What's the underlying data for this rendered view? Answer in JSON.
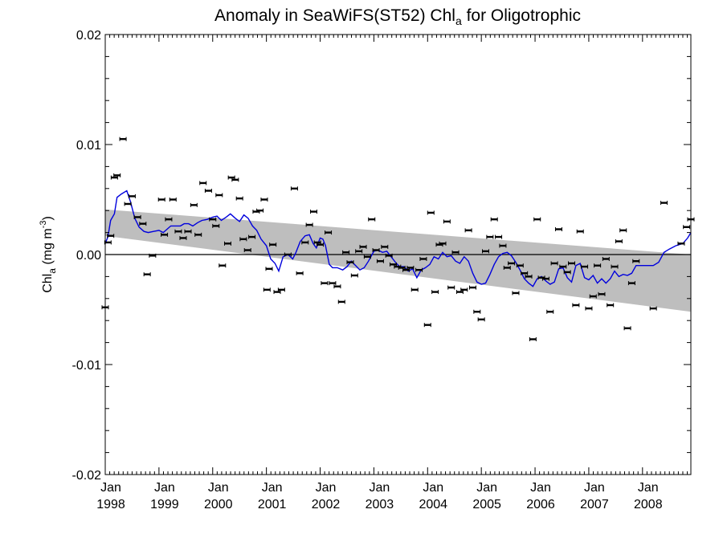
{
  "title_main": "Anomaly in SeaWiFS(ST52) Chl",
  "title_sub": "a",
  "title_tail": " for Oligotrophic",
  "ylabel_main": "Chl",
  "ylabel_sub": "a",
  "ylabel_units": " (mg m",
  "ylabel_sup": "-3",
  "ylabel_close": ")",
  "chart_data": {
    "type": "line",
    "title": "Anomaly in SeaWiFS(ST52) Chla for Oligotrophic",
    "ylabel": "Chla (mg m-3)",
    "xlabel": "",
    "xlim": [
      1998.0,
      2008.9
    ],
    "ylim": [
      -0.02,
      0.02
    ],
    "yticks": [
      {
        "value": 0.02,
        "label": "0.02"
      },
      {
        "value": 0.01,
        "label": "0.01"
      },
      {
        "value": 0.0,
        "label": "0.00"
      },
      {
        "value": -0.01,
        "label": "-0.01"
      },
      {
        "value": -0.02,
        "label": "-0.02"
      }
    ],
    "xticks": [
      {
        "value": 1998,
        "month": "Jan",
        "year": "1998"
      },
      {
        "value": 1999,
        "month": "Jan",
        "year": "1999"
      },
      {
        "value": 2000,
        "month": "Jan",
        "year": "2000"
      },
      {
        "value": 2001,
        "month": "Jan",
        "year": "2001"
      },
      {
        "value": 2002,
        "month": "Jan",
        "year": "2002"
      },
      {
        "value": 2003,
        "month": "Jan",
        "year": "2003"
      },
      {
        "value": 2004,
        "month": "Jan",
        "year": "2004"
      },
      {
        "value": 2005,
        "month": "Jan",
        "year": "2005"
      },
      {
        "value": 2006,
        "month": "Jan",
        "year": "2006"
      },
      {
        "value": 2007,
        "month": "Jan",
        "year": "2007"
      },
      {
        "value": 2008,
        "month": "Jan",
        "year": "2008"
      }
    ],
    "trend_band": {
      "x": [
        1998.0,
        2008.9
      ],
      "upper": [
        0.0041,
        0.0
      ],
      "lower": [
        0.0017,
        -0.0052
      ],
      "color": "#bebebe"
    },
    "zero_line": 0.0,
    "series": [
      {
        "type": "line",
        "color": "#0000dd",
        "points": [
          [
            1998.0,
            0.001
          ],
          [
            1998.05,
            0.0016
          ],
          [
            1998.1,
            0.0031
          ],
          [
            1998.17,
            0.0037
          ],
          [
            1998.22,
            0.0052
          ],
          [
            1998.3,
            0.0055
          ],
          [
            1998.4,
            0.0058
          ],
          [
            1998.47,
            0.0048
          ],
          [
            1998.55,
            0.0033
          ],
          [
            1998.63,
            0.0025
          ],
          [
            1998.72,
            0.0021
          ],
          [
            1998.8,
            0.002
          ],
          [
            1998.9,
            0.0021
          ],
          [
            1999.0,
            0.0022
          ],
          [
            1999.08,
            0.002
          ],
          [
            1999.15,
            0.0023
          ],
          [
            1999.22,
            0.0026
          ],
          [
            1999.32,
            0.0026
          ],
          [
            1999.4,
            0.0026
          ],
          [
            1999.47,
            0.0028
          ],
          [
            1999.55,
            0.0028
          ],
          [
            1999.63,
            0.0026
          ],
          [
            1999.72,
            0.0029
          ],
          [
            1999.8,
            0.0031
          ],
          [
            1999.9,
            0.0032
          ],
          [
            2000.0,
            0.0034
          ],
          [
            2000.08,
            0.0035
          ],
          [
            2000.16,
            0.0031
          ],
          [
            2000.25,
            0.0034
          ],
          [
            2000.33,
            0.0037
          ],
          [
            2000.42,
            0.0033
          ],
          [
            2000.5,
            0.003
          ],
          [
            2000.58,
            0.0036
          ],
          [
            2000.66,
            0.0033
          ],
          [
            2000.74,
            0.0026
          ],
          [
            2000.82,
            0.0022
          ],
          [
            2000.9,
            0.0014
          ],
          [
            2001.0,
            0.0008
          ],
          [
            2001.08,
            -0.0004
          ],
          [
            2001.16,
            -0.0008
          ],
          [
            2001.23,
            -0.0015
          ],
          [
            2001.31,
            -0.0002
          ],
          [
            2001.4,
            0.0
          ],
          [
            2001.49,
            -0.0004
          ],
          [
            2001.55,
            0.0002
          ],
          [
            2001.63,
            0.0012
          ],
          [
            2001.72,
            0.0017
          ],
          [
            2001.8,
            0.0018
          ],
          [
            2001.87,
            0.001
          ],
          [
            2001.93,
            0.0006
          ],
          [
            2002.0,
            0.0015
          ],
          [
            2002.05,
            0.0014
          ],
          [
            2002.1,
            0.0008
          ],
          [
            2002.17,
            -0.0009
          ],
          [
            2002.23,
            -0.0012
          ],
          [
            2002.32,
            -0.0012
          ],
          [
            2002.42,
            -0.0014
          ],
          [
            2002.5,
            -0.0011
          ],
          [
            2002.58,
            -0.0006
          ],
          [
            2002.66,
            -0.001
          ],
          [
            2002.74,
            -0.0014
          ],
          [
            2002.82,
            -0.0012
          ],
          [
            2002.9,
            -0.0006
          ],
          [
            2003.0,
            0.0003
          ],
          [
            2003.08,
            0.0004
          ],
          [
            2003.16,
            0.0002
          ],
          [
            2003.24,
            0.0003
          ],
          [
            2003.32,
            -0.0002
          ],
          [
            2003.4,
            -0.0007
          ],
          [
            2003.48,
            -0.0011
          ],
          [
            2003.56,
            -0.0011
          ],
          [
            2003.64,
            -0.0015
          ],
          [
            2003.72,
            -0.0013
          ],
          [
            2003.8,
            -0.0021
          ],
          [
            2003.88,
            -0.0014
          ],
          [
            2003.96,
            -0.0012
          ],
          [
            2004.04,
            -0.0009
          ],
          [
            2004.12,
            -0.0002
          ],
          [
            2004.2,
            -0.0004
          ],
          [
            2004.28,
            0.0002
          ],
          [
            2004.36,
            -0.0002
          ],
          [
            2004.44,
            -0.0001
          ],
          [
            2004.52,
            -0.0006
          ],
          [
            2004.6,
            -0.0008
          ],
          [
            2004.68,
            -0.0002
          ],
          [
            2004.76,
            -0.0006
          ],
          [
            2004.84,
            -0.0017
          ],
          [
            2004.92,
            -0.0025
          ],
          [
            2005.0,
            -0.0027
          ],
          [
            2005.08,
            -0.0026
          ],
          [
            2005.16,
            -0.0018
          ],
          [
            2005.24,
            -0.0009
          ],
          [
            2005.32,
            -0.0002
          ],
          [
            2005.4,
            0.0001
          ],
          [
            2005.48,
            0.0002
          ],
          [
            2005.56,
            -0.0001
          ],
          [
            2005.64,
            -0.0007
          ],
          [
            2005.72,
            -0.0014
          ],
          [
            2005.8,
            -0.0022
          ],
          [
            2005.88,
            -0.0026
          ],
          [
            2005.96,
            -0.0029
          ],
          [
            2006.04,
            -0.0022
          ],
          [
            2006.12,
            -0.002
          ],
          [
            2006.2,
            -0.0024
          ],
          [
            2006.28,
            -0.0027
          ],
          [
            2006.36,
            -0.0025
          ],
          [
            2006.44,
            -0.0013
          ],
          [
            2006.52,
            -0.0012
          ],
          [
            2006.6,
            -0.0021
          ],
          [
            2006.68,
            -0.0025
          ],
          [
            2006.76,
            -0.001
          ],
          [
            2006.84,
            -0.0008
          ],
          [
            2006.92,
            -0.0021
          ],
          [
            2007.0,
            -0.0023
          ],
          [
            2007.08,
            -0.0019
          ],
          [
            2007.16,
            -0.0026
          ],
          [
            2007.24,
            -0.0022
          ],
          [
            2007.32,
            -0.0026
          ],
          [
            2007.4,
            -0.0022
          ],
          [
            2007.48,
            -0.0015
          ],
          [
            2007.56,
            -0.002
          ],
          [
            2007.64,
            -0.0018
          ],
          [
            2007.72,
            -0.0019
          ],
          [
            2007.8,
            -0.0017
          ],
          [
            2007.88,
            -0.001
          ],
          [
            2008.0,
            -0.001
          ],
          [
            2008.2,
            -0.001
          ],
          [
            2008.3,
            -0.0007
          ],
          [
            2008.4,
            0.0002
          ],
          [
            2008.5,
            0.0005
          ],
          [
            2008.62,
            0.0008
          ],
          [
            2008.75,
            0.001
          ],
          [
            2008.84,
            0.0015
          ],
          [
            2008.9,
            0.002
          ]
        ]
      },
      {
        "type": "scatter_with_errorbars",
        "color": "#000000",
        "points": [
          [
            1998.0,
            -0.0048
          ],
          [
            1998.05,
            0.0011
          ],
          [
            1998.1,
            0.0017
          ],
          [
            1998.17,
            0.007
          ],
          [
            1998.22,
            0.0072
          ],
          [
            1998.33,
            0.0105
          ],
          [
            1998.42,
            0.0046
          ],
          [
            1998.5,
            0.0053
          ],
          [
            1998.6,
            0.0034
          ],
          [
            1998.7,
            0.0028
          ],
          [
            1998.78,
            -0.0018
          ],
          [
            1998.88,
            -0.0001
          ],
          [
            1999.05,
            0.005
          ],
          [
            1999.1,
            0.0018
          ],
          [
            1999.18,
            0.0032
          ],
          [
            1999.26,
            0.005
          ],
          [
            1999.36,
            0.0021
          ],
          [
            1999.45,
            0.0015
          ],
          [
            1999.54,
            0.0021
          ],
          [
            1999.65,
            0.0045
          ],
          [
            1999.73,
            0.0018
          ],
          [
            1999.82,
            0.0065
          ],
          [
            1999.92,
            0.0058
          ],
          [
            2000.0,
            0.0032
          ],
          [
            2000.06,
            0.0026
          ],
          [
            2000.12,
            0.0054
          ],
          [
            2000.18,
            -0.001
          ],
          [
            2000.28,
            0.001
          ],
          [
            2000.35,
            0.007
          ],
          [
            2000.42,
            0.0068
          ],
          [
            2000.5,
            0.0051
          ],
          [
            2000.57,
            0.0014
          ],
          [
            2000.65,
            0.0004
          ],
          [
            2000.73,
            0.0016
          ],
          [
            2000.81,
            0.0039
          ],
          [
            2000.88,
            0.004
          ],
          [
            2000.96,
            0.005
          ],
          [
            2001.01,
            -0.0032
          ],
          [
            2001.05,
            -0.0013
          ],
          [
            2001.12,
            0.0009
          ],
          [
            2001.2,
            -0.0034
          ],
          [
            2001.28,
            -0.0032
          ],
          [
            2001.4,
            0.0
          ],
          [
            2001.52,
            0.006
          ],
          [
            2001.62,
            -0.0017
          ],
          [
            2001.72,
            0.0011
          ],
          [
            2001.8,
            0.0027
          ],
          [
            2001.88,
            0.0039
          ],
          [
            2001.95,
            0.0011
          ],
          [
            2002.0,
            0.0009
          ],
          [
            2002.08,
            -0.0026
          ],
          [
            2002.15,
            0.002
          ],
          [
            2002.23,
            -0.0026
          ],
          [
            2002.32,
            -0.0029
          ],
          [
            2002.4,
            -0.0043
          ],
          [
            2002.48,
            0.0002
          ],
          [
            2002.56,
            -0.0007
          ],
          [
            2002.64,
            -0.0019
          ],
          [
            2002.72,
            0.0003
          ],
          [
            2002.8,
            0.0007
          ],
          [
            2002.88,
            -0.0002
          ],
          [
            2002.96,
            0.0032
          ],
          [
            2003.04,
            0.0004
          ],
          [
            2003.12,
            -0.0006
          ],
          [
            2003.2,
            0.0007
          ],
          [
            2003.28,
            -0.0001
          ],
          [
            2003.36,
            -0.0009
          ],
          [
            2003.44,
            -0.0011
          ],
          [
            2003.52,
            -0.0012
          ],
          [
            2003.6,
            -0.0014
          ],
          [
            2003.68,
            -0.0012
          ],
          [
            2003.76,
            -0.0032
          ],
          [
            2003.84,
            -0.0014
          ],
          [
            2003.92,
            -0.0004
          ],
          [
            2004.0,
            -0.0064
          ],
          [
            2004.06,
            0.0038
          ],
          [
            2004.14,
            -0.0034
          ],
          [
            2004.22,
            0.0009
          ],
          [
            2004.28,
            0.001
          ],
          [
            2004.36,
            0.003
          ],
          [
            2004.44,
            -0.003
          ],
          [
            2004.52,
            0.0002
          ],
          [
            2004.6,
            -0.0034
          ],
          [
            2004.68,
            -0.0032
          ],
          [
            2004.76,
            0.0022
          ],
          [
            2004.84,
            -0.003
          ],
          [
            2004.92,
            -0.0052
          ],
          [
            2005.0,
            -0.0059
          ],
          [
            2005.08,
            0.0003
          ],
          [
            2005.16,
            0.0016
          ],
          [
            2005.24,
            0.0032
          ],
          [
            2005.32,
            0.0016
          ],
          [
            2005.4,
            0.0008
          ],
          [
            2005.48,
            -0.0012
          ],
          [
            2005.56,
            -0.0008
          ],
          [
            2005.64,
            -0.0035
          ],
          [
            2005.72,
            -0.001
          ],
          [
            2005.8,
            -0.0017
          ],
          [
            2005.88,
            -0.002
          ],
          [
            2005.96,
            -0.0077
          ],
          [
            2006.04,
            0.0032
          ],
          [
            2006.12,
            -0.0021
          ],
          [
            2006.2,
            -0.0022
          ],
          [
            2006.28,
            -0.0052
          ],
          [
            2006.36,
            -0.0008
          ],
          [
            2006.44,
            0.0023
          ],
          [
            2006.52,
            -0.0011
          ],
          [
            2006.6,
            -0.0016
          ],
          [
            2006.68,
            -0.0008
          ],
          [
            2006.76,
            -0.0046
          ],
          [
            2006.84,
            0.0021
          ],
          [
            2006.92,
            -0.0011
          ],
          [
            2007.0,
            -0.0049
          ],
          [
            2007.08,
            -0.0038
          ],
          [
            2007.16,
            -0.001
          ],
          [
            2007.24,
            -0.0036
          ],
          [
            2007.32,
            -0.0004
          ],
          [
            2007.4,
            -0.0046
          ],
          [
            2007.48,
            -0.0011
          ],
          [
            2007.56,
            0.0012
          ],
          [
            2007.64,
            0.0022
          ],
          [
            2007.72,
            -0.0067
          ],
          [
            2007.8,
            -0.0026
          ],
          [
            2007.88,
            -0.0006
          ],
          [
            2008.2,
            -0.0049
          ],
          [
            2008.4,
            0.0047
          ],
          [
            2008.72,
            0.001
          ],
          [
            2008.82,
            0.0025
          ],
          [
            2008.9,
            0.0032
          ]
        ]
      }
    ]
  }
}
